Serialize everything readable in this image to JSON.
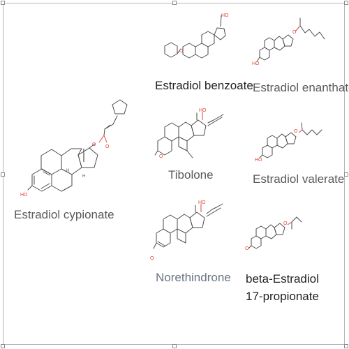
{
  "molecules": [
    {
      "id": "estradiol-cypionate",
      "name": "Estradiol cypionate"
    },
    {
      "id": "estradiol-benzoate",
      "name": "Estradiol benzoate"
    },
    {
      "id": "estradiol-enanthate",
      "name": "Estradiol enanthate"
    },
    {
      "id": "tibolone",
      "name": "Tibolone"
    },
    {
      "id": "estradiol-valerate",
      "name": "Estradiol valerate"
    },
    {
      "id": "norethindrone",
      "name": "Norethindrone"
    },
    {
      "id": "beta-estradiol-17-propionate",
      "name": "beta-Estradiol 17-propionate"
    }
  ],
  "atom_labels": {
    "oxygen": "O",
    "hydroxyl": "HO",
    "hydrogen": "H"
  }
}
